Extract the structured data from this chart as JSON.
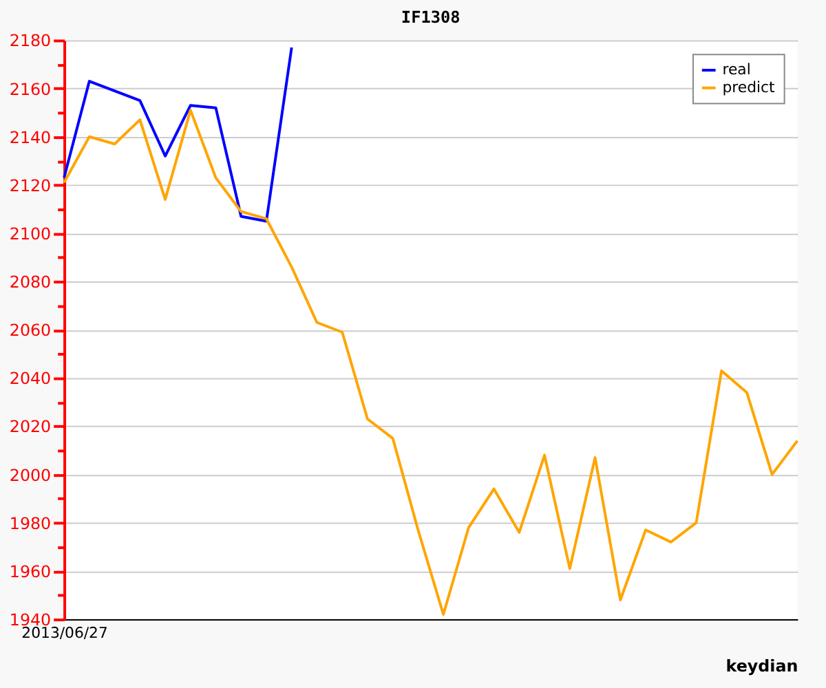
{
  "chart_data": {
    "type": "line",
    "title": "IF1308",
    "xlabel": "keydian",
    "categories": [
      "2013/06/27",
      null,
      null,
      null,
      null,
      null,
      null,
      null,
      null,
      null,
      null,
      null,
      null,
      null,
      null,
      null,
      null,
      null,
      null,
      null,
      null,
      null,
      null,
      null,
      null,
      null,
      null,
      null,
      null,
      null
    ],
    "series": [
      {
        "name": "real",
        "color": "#0000ff",
        "values": [
          2123,
          2163,
          2159,
          2155,
          2132,
          2153,
          2152,
          2107,
          2105,
          2177,
          null,
          null,
          null,
          null,
          null,
          null,
          null,
          null,
          null,
          null,
          null,
          null,
          null,
          null,
          null,
          null,
          null,
          null,
          null,
          null
        ]
      },
      {
        "name": "predict",
        "color": "#ffa500",
        "values": [
          2121,
          2140,
          2137,
          2147,
          2114,
          2151,
          2123,
          2109,
          2106,
          2086,
          2063,
          2059,
          2023,
          2015,
          1977,
          1942,
          1978,
          1994,
          1976,
          2008,
          1961,
          2007,
          1948,
          1977,
          1972,
          1980,
          2043,
          2034,
          2000,
          2014
        ]
      }
    ],
    "ylim": [
      1940,
      2180
    ],
    "yticks": [
      1940,
      {
        "value": 1950,
        "label": null
      },
      1960,
      {
        "value": 1970,
        "label": null
      },
      1980,
      {
        "value": 1990,
        "label": null
      },
      2000,
      {
        "value": 2010,
        "label": null
      },
      2020,
      {
        "value": 2030,
        "label": null
      },
      2040,
      {
        "value": 2050,
        "label": null
      },
      2060,
      {
        "value": 2070,
        "label": null
      },
      2080,
      {
        "value": 2090,
        "label": null
      },
      2100,
      {
        "value": 2110,
        "label": null
      },
      2120,
      {
        "value": 2130,
        "label": null
      },
      2140,
      {
        "value": 2150,
        "label": null
      },
      2160,
      {
        "value": 2170,
        "label": null
      },
      2180
    ],
    "grid": "y",
    "legend": "top right",
    "marker": "none",
    "line_style": "solid"
  }
}
